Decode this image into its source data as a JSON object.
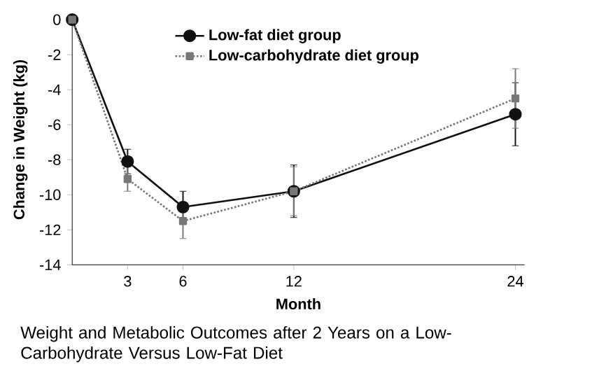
{
  "chart_data": {
    "type": "line",
    "xlabel": "Month",
    "ylabel": "Change in Weight (kg)",
    "x": [
      0,
      3,
      6,
      12,
      24
    ],
    "series": [
      {
        "name": "Low-fat diet group",
        "color": "#111111",
        "marker": "circle",
        "line_style": "solid",
        "values": [
          0,
          -8.1,
          -10.7,
          -9.8,
          -5.4
        ],
        "errors": [
          null,
          0.7,
          0.9,
          1.5,
          1.8
        ]
      },
      {
        "name": "Low-carbohydrate diet group",
        "color": "#777777",
        "marker": "square",
        "line_style": "dotted",
        "values": [
          0,
          -9.1,
          -11.5,
          -9.8,
          -4.5
        ],
        "errors": [
          null,
          0.7,
          1.0,
          1.4,
          1.7
        ]
      }
    ],
    "xlim": [
      0,
      24.5
    ],
    "xticks": [
      3,
      6,
      12,
      24
    ],
    "ylim": [
      -14,
      0.3
    ],
    "yticks": [
      0,
      -2,
      -4,
      -6,
      -8,
      -10,
      -12,
      -14
    ],
    "legend": "top",
    "grid": false,
    "annotations": [
      "Weight and Metabolic Outcomes after 2 Years on a Low-Carbohydrate Versus Low-Fat Diet"
    ]
  }
}
